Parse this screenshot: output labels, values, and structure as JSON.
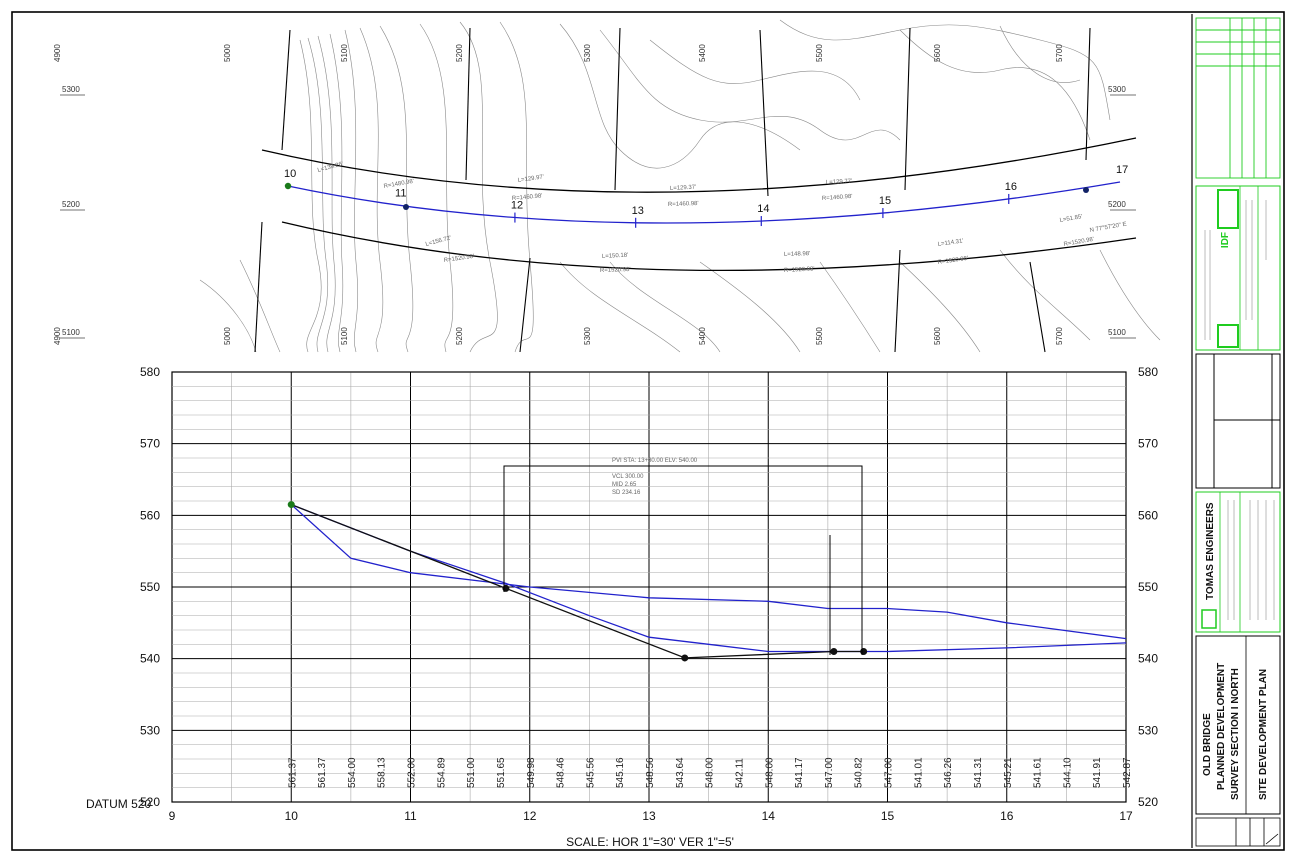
{
  "plan": {
    "grid_x_labels": [
      "4900",
      "5000",
      "5100",
      "5200",
      "5300",
      "5400",
      "5500",
      "5600",
      "5700"
    ],
    "grid_y_labels": [
      "5300",
      "5200",
      "5100"
    ],
    "stations": [
      {
        "label": "10"
      },
      {
        "label": "11"
      },
      {
        "label": "12"
      },
      {
        "label": "13"
      },
      {
        "label": "14"
      },
      {
        "label": "15"
      },
      {
        "label": "16"
      },
      {
        "label": "17"
      }
    ],
    "curve_labels": [
      "L=139.26'",
      "R=1480.98'",
      "L=129.97'",
      "R=1460.98'",
      "L=129.37'",
      "R=1460.98'",
      "L=129.77'",
      "R=1460.98'",
      "L=156.72'",
      "R=1520.98'",
      "L=150.18'",
      "R=1520.98'",
      "L=148.98'",
      "R=1520.98'",
      "L=114.31'",
      "R=1520.98'",
      "L=51.85'",
      "R=1520.98'",
      "N 77°57'20\" E"
    ]
  },
  "profile": {
    "y_ticks": [
      "580",
      "570",
      "560",
      "550",
      "540",
      "530",
      "520"
    ],
    "x_ticks": [
      "9",
      "10",
      "11",
      "12",
      "13",
      "14",
      "15",
      "16",
      "17"
    ],
    "datum_label": "DATUM 520",
    "scale_label": "SCALE: HOR 1\"=30' VER 1\"=5'",
    "elevations": [
      "561.37",
      "561.37",
      "554.00",
      "558.13",
      "552.00",
      "554.89",
      "551.00",
      "551.65",
      "549.98",
      "548.46",
      "545.56",
      "545.16",
      "548.56",
      "543.64",
      "548.00",
      "542.11",
      "548.00",
      "541.17",
      "547.00",
      "540.82",
      "547.00",
      "541.01",
      "546.26",
      "541.31",
      "545.21",
      "541.61",
      "544.10",
      "541.91",
      "542.87"
    ],
    "pvi_notes": [
      "PVI STA: 13+30.00  ELV: 540.00",
      "VCL 300.00",
      "MID 2.65",
      "SD 234.16"
    ],
    "chart_data": {
      "type": "line",
      "x_label": "",
      "ylim": [
        520,
        580
      ],
      "xlim": [
        9,
        17
      ],
      "series": [
        {
          "name": "",
          "color": "#2222cc",
          "points": [
            [
              10,
              561.5
            ],
            [
              10.5,
              554
            ],
            [
              11,
              552
            ],
            [
              12,
              550
            ],
            [
              13,
              548.5
            ],
            [
              14,
              548
            ],
            [
              14.5,
              547
            ],
            [
              15,
              547
            ],
            [
              15.5,
              546.5
            ],
            [
              16,
              545
            ],
            [
              17,
              542.8
            ]
          ]
        },
        {
          "name": "",
          "color": "#2222cc",
          "points": [
            [
              10,
              561.5
            ],
            [
              11,
              555
            ],
            [
              11.8,
              550.5
            ],
            [
              12.5,
              546
            ],
            [
              13,
              543
            ],
            [
              13.5,
              542
            ],
            [
              14,
              541
            ],
            [
              15,
              541
            ],
            [
              16,
              541.5
            ],
            [
              17,
              542.2
            ]
          ]
        },
        {
          "name": "",
          "color": "#111111",
          "points": [
            [
              10,
              561.5
            ],
            [
              11.8,
              549.8
            ],
            [
              13.3,
              540.1
            ],
            [
              14.55,
              541
            ],
            [
              14.8,
              541
            ]
          ]
        }
      ],
      "markers": [
        {
          "x": 10,
          "y": 561.5,
          "color": "#1a7a1a"
        },
        {
          "x": 11.8,
          "y": 549.8,
          "color": "#111111"
        },
        {
          "x": 13.3,
          "y": 540.1,
          "color": "#111111"
        },
        {
          "x": 14.55,
          "y": 541,
          "color": "#111111"
        },
        {
          "x": 14.8,
          "y": 541,
          "color": "#111111"
        }
      ]
    }
  },
  "title_block": {
    "firm_name": "TOMAS ENGINEERS",
    "project_line1": "OLD BRIDGE",
    "project_line2": "PLANNED DEVELOPMENT",
    "project_line3": "SURVEY SECTION I NORTH",
    "sheet_title": "SITE DEVELOPMENT PLAN",
    "logo_letters": "IDF"
  }
}
